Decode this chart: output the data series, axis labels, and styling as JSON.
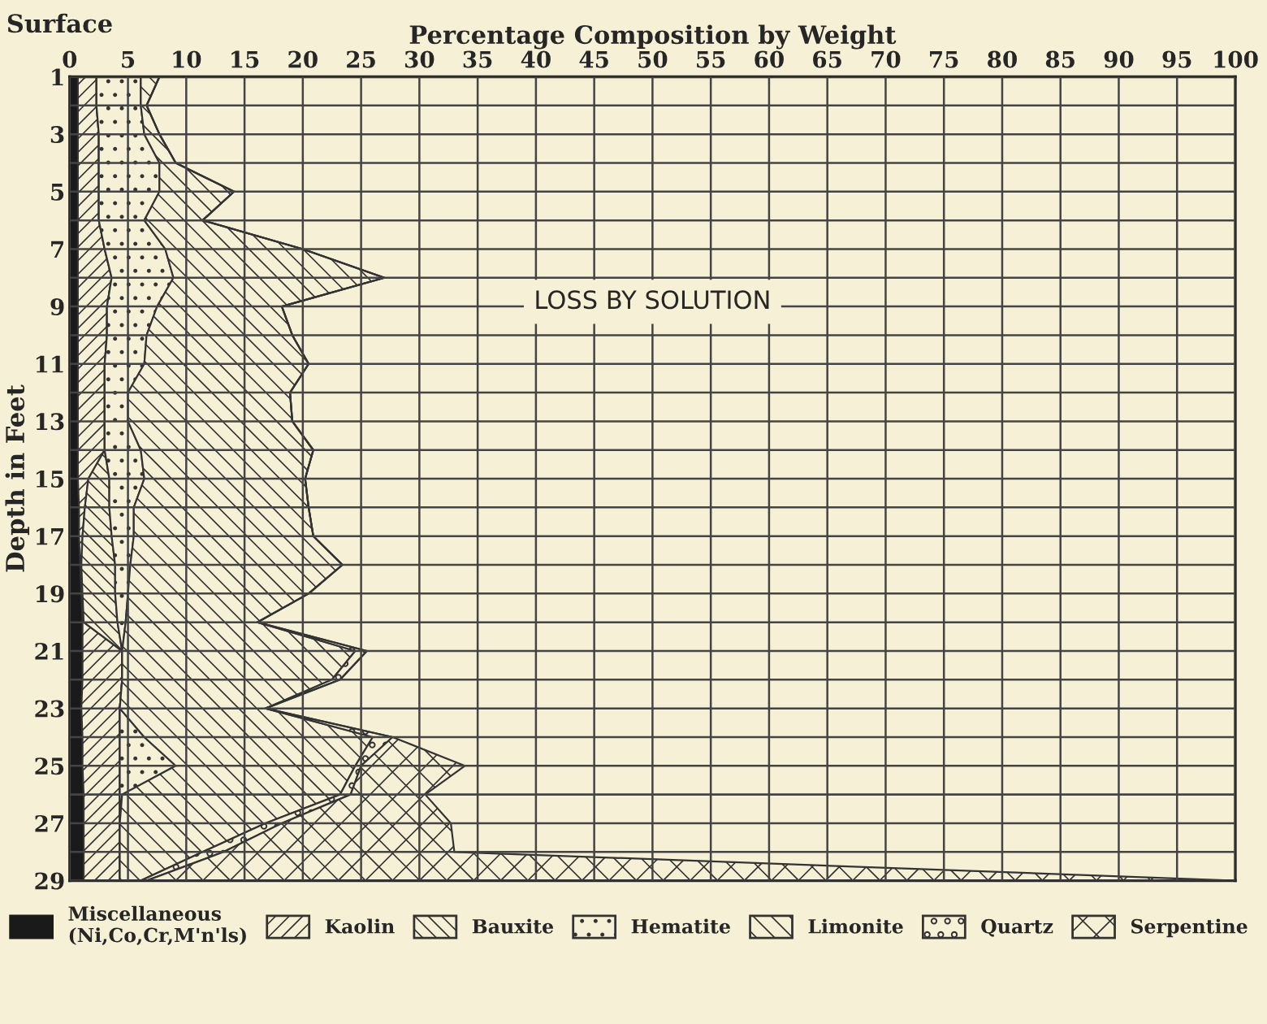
{
  "chart_data": {
    "type": "area",
    "orientation": "horizontal",
    "stacked": true,
    "xlabel": "Percentage Composition by Weight",
    "ylabel": "Depth in Feet",
    "annotations": [
      "Surface",
      "LOSS BY SOLUTION"
    ],
    "x": [
      1,
      2,
      3,
      4,
      5,
      6,
      7,
      8,
      9,
      10,
      11,
      12,
      13,
      14,
      15,
      16,
      17,
      18,
      19,
      20,
      21,
      22,
      23,
      24,
      25,
      26,
      27,
      28,
      29
    ],
    "series": [
      {
        "name": "Miscellaneous\n(Ni,Co,Cr,M'n'ls)",
        "color": "#1a1a1a",
        "values": [
          0.7,
          0.7,
          0.7,
          0.7,
          0.7,
          0.7,
          0.7,
          0.7,
          0.7,
          0.7,
          0.7,
          0.7,
          0.7,
          0.7,
          0.7,
          0.8,
          0.8,
          0.9,
          1.0,
          1.1,
          1.1,
          1.1,
          1.0,
          1.1,
          1.1,
          1.2,
          1.2,
          1.2,
          1.2
        ]
      },
      {
        "name": "Kaolin",
        "color": "#333333",
        "values": [
          1.6,
          1.6,
          1.8,
          1.8,
          1.8,
          1.8,
          2.3,
          2.9,
          2.5,
          2.5,
          2.3,
          2.3,
          2.3,
          2.3,
          0.9,
          0.5,
          0.3,
          0.1,
          0.1,
          0.1,
          3.4,
          3.4,
          3.3,
          3.2,
          3.2,
          3.1,
          3.1,
          3.1,
          3.1
        ]
      },
      {
        "name": "Bauxite",
        "color": "#333333",
        "values": [
          0,
          0,
          0,
          0,
          0,
          0,
          0,
          0,
          0,
          0,
          0,
          0,
          0,
          0,
          1.8,
          2.1,
          2.5,
          2.9,
          2.8,
          2.9,
          0,
          0,
          0,
          0,
          0,
          0,
          0,
          0,
          0
        ]
      },
      {
        "name": "Hematite",
        "color": "#333333",
        "values": [
          3.8,
          3.8,
          3.9,
          5.2,
          5.2,
          3.9,
          5.2,
          5.3,
          4.3,
          3.4,
          3.4,
          2.0,
          2.0,
          3.1,
          3.0,
          2.1,
          1.9,
          1.3,
          1.1,
          0.7,
          0,
          0,
          0,
          2.1,
          4.8,
          0.2,
          0,
          0,
          0
        ]
      },
      {
        "name": "Limonite",
        "color": "#333333",
        "values": [
          1.6,
          0.5,
          1.3,
          1.4,
          6.4,
          5.0,
          11.8,
          18.1,
          10.7,
          12.5,
          14.1,
          13.9,
          14.1,
          14.8,
          13.8,
          15.0,
          15.4,
          18.2,
          15.5,
          11.3,
          20.0,
          18.0,
          12.5,
          19.6,
          15.4,
          18.7,
          12.5,
          7.1,
          1.8
        ]
      },
      {
        "name": "Quartz",
        "color": "#333333",
        "values": [
          0,
          0,
          0,
          0,
          0,
          0,
          0,
          0,
          0,
          0,
          0,
          0,
          0,
          0,
          0,
          0,
          0,
          0,
          0,
          0,
          1.0,
          0.7,
          0,
          1.7,
          0.5,
          0.9,
          1.4,
          1.8,
          0.5
        ]
      },
      {
        "name": "Serpentine",
        "color": "#333333",
        "values": [
          0,
          0,
          0,
          0,
          0,
          0,
          0,
          0,
          0,
          0,
          0,
          0,
          0,
          0,
          0,
          0,
          0,
          0,
          0,
          0,
          0,
          0,
          0,
          0,
          8.9,
          6.4,
          14.5,
          19.8,
          93.4
        ]
      }
    ],
    "xlim": [
      0,
      100
    ],
    "xticks": [
      0,
      5,
      10,
      15,
      20,
      25,
      30,
      35,
      40,
      45,
      50,
      55,
      60,
      65,
      70,
      75,
      80,
      85,
      90,
      95,
      100
    ],
    "ylim": [
      29,
      1
    ],
    "yticks": [
      1,
      {
        "value": 2,
        "label": null
      },
      3,
      {
        "value": 4,
        "label": null
      },
      5,
      {
        "value": 6,
        "label": null
      },
      7,
      {
        "value": 8,
        "label": null
      },
      9,
      {
        "value": 10,
        "label": null
      },
      11,
      {
        "value": 12,
        "label": null
      },
      13,
      {
        "value": 14,
        "label": null
      },
      15,
      {
        "value": 16,
        "label": null
      },
      17,
      {
        "value": 18,
        "label": null
      },
      19,
      {
        "value": 20,
        "label": null
      },
      21,
      {
        "value": 22,
        "label": null
      },
      23,
      {
        "value": 24,
        "label": null
      },
      25,
      {
        "value": 26,
        "label": null
      },
      27,
      {
        "value": 28,
        "label": null
      },
      29
    ],
    "grid": true,
    "legend": "bottom"
  }
}
